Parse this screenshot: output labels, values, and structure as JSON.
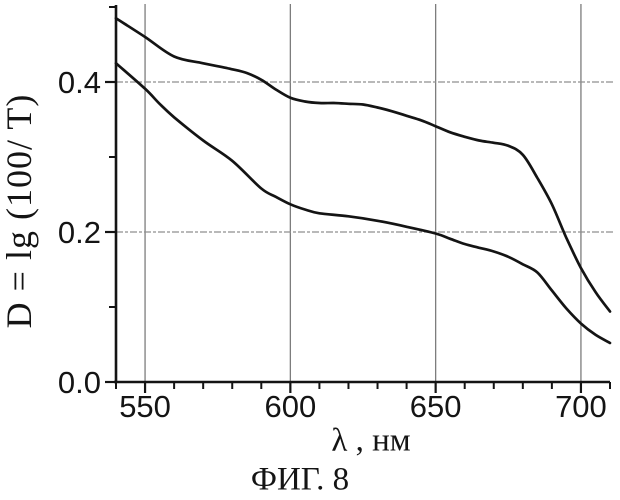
{
  "figure": {
    "caption": "ФИГ. 8"
  },
  "chart_data": {
    "type": "line",
    "title": "",
    "xlabel": "λ , нм",
    "ylabel": "D = lg (100/ T)",
    "xlim": [
      540,
      710
    ],
    "ylim": [
      0,
      0.5
    ],
    "grid": true,
    "legend_position": "none",
    "x_major_ticks": [
      550,
      600,
      650,
      700
    ],
    "x_tick_labels": [
      "550",
      "600",
      "650",
      "700"
    ],
    "x_minor_step": 10,
    "y_major_ticks": [
      0.0,
      0.2,
      0.4
    ],
    "y_tick_labels": [
      "0.0",
      "0.2",
      "0.4"
    ],
    "y_minor_ticks": [
      0.1,
      0.3,
      0.5
    ],
    "x_gridline_values": [
      550,
      600,
      650,
      700
    ],
    "y_gridline_values": [
      0.2,
      0.4
    ],
    "colors": {
      "curve": "#141414",
      "axis": "#141414",
      "grid_vertical": "#7d7d7d",
      "grid_horizontal": "#8f8f8f",
      "tick_label": "#141414"
    },
    "series": [
      {
        "name": "upper-curve",
        "x": [
          540,
          550,
          560,
          570,
          580,
          585,
          590,
          595,
          600,
          605,
          610,
          615,
          620,
          625,
          630,
          635,
          640,
          645,
          650,
          655,
          660,
          665,
          670,
          675,
          680,
          685,
          690,
          695,
          700,
          705,
          710
        ],
        "y": [
          0.485,
          0.46,
          0.434,
          0.425,
          0.417,
          0.412,
          0.403,
          0.39,
          0.379,
          0.374,
          0.372,
          0.372,
          0.371,
          0.37,
          0.366,
          0.361,
          0.355,
          0.349,
          0.341,
          0.333,
          0.327,
          0.322,
          0.319,
          0.315,
          0.303,
          0.272,
          0.237,
          0.192,
          0.152,
          0.12,
          0.094
        ]
      },
      {
        "name": "lower-curve",
        "x": [
          540,
          550,
          555,
          560,
          570,
          580,
          590,
          595,
          600,
          605,
          610,
          620,
          630,
          640,
          650,
          655,
          660,
          665,
          670,
          675,
          680,
          685,
          690,
          695,
          700,
          705,
          710
        ],
        "y": [
          0.425,
          0.391,
          0.371,
          0.353,
          0.322,
          0.295,
          0.258,
          0.247,
          0.237,
          0.23,
          0.225,
          0.221,
          0.215,
          0.207,
          0.198,
          0.191,
          0.184,
          0.179,
          0.174,
          0.167,
          0.157,
          0.146,
          0.122,
          0.098,
          0.078,
          0.063,
          0.052
        ]
      }
    ]
  }
}
